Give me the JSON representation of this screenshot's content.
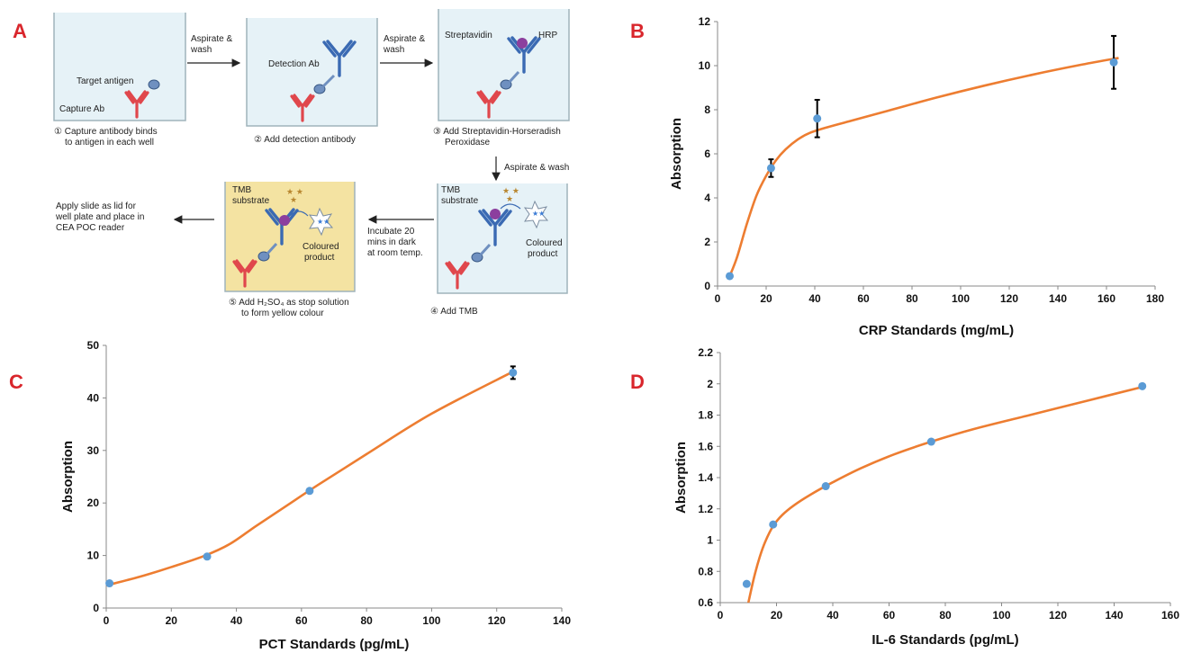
{
  "panels": {
    "A": "A",
    "B": "B",
    "C": "C",
    "D": "D"
  },
  "diagram": {
    "wells": [
      {
        "caption": [
          "① Capture antibody binds",
          "to antigen in each well"
        ],
        "labels": [
          "Target antigen",
          "Capture Ab"
        ]
      },
      {
        "caption": [
          "② Add detection antibody"
        ],
        "labels": [
          "Detection Ab"
        ]
      },
      {
        "caption": [
          "③ Add Streptavidin-Horseradish",
          "Peroxidase"
        ],
        "labels": [
          "Streptavidin",
          "HRP"
        ]
      },
      {
        "caption": [
          "④ Add TMB"
        ],
        "labels": [
          "TMB",
          "substrate",
          "Coloured",
          "product"
        ]
      },
      {
        "caption": [
          "⑤ Add H₂SO₄ as stop solution",
          "to form yellow colour"
        ],
        "labels": [
          "TMB",
          "substrate",
          "Coloured",
          "product"
        ]
      }
    ],
    "steps": {
      "wash1": [
        "Aspirate &",
        "wash"
      ],
      "wash2": [
        "Aspirate &",
        "wash"
      ],
      "wash3": [
        "Aspirate & wash"
      ],
      "incubate": [
        "Incubate 20",
        "mins in dark",
        "at room temp."
      ],
      "final": [
        "Apply slide as lid for",
        "well plate and place in",
        "CEA POC reader"
      ]
    },
    "colors": {
      "capture_ab": "#e0474c",
      "detection_ab": "#3a6ab3",
      "antigen": "#6f90c0",
      "hrp": "#8c3f9e",
      "well": "#e6f2f7",
      "yellow_well": "#f4e3a2",
      "tmb_star": "#b8862f"
    }
  },
  "chart_data": [
    {
      "type": "scatter",
      "panel": "B",
      "xlabel": "CRP Standards (mg/mL)",
      "ylabel": "Absorption",
      "xlim": [
        0,
        180
      ],
      "ylim": [
        0,
        12
      ],
      "xticks": [
        0,
        20,
        40,
        60,
        80,
        100,
        120,
        140,
        160,
        180
      ],
      "yticks": [
        0,
        2,
        4,
        6,
        8,
        10,
        12
      ],
      "x": [
        5,
        22,
        41,
        163
      ],
      "y": [
        0.45,
        5.35,
        7.6,
        10.15
      ],
      "error": [
        0,
        0.4,
        0.85,
        1.2
      ],
      "fit": {
        "x": [
          5,
          8,
          12,
          16,
          20,
          24,
          28,
          33,
          38,
          45,
          55,
          70,
          90,
          110,
          130,
          150,
          165
        ],
        "y": [
          0.45,
          1.3,
          2.8,
          4.1,
          5.0,
          5.7,
          6.2,
          6.65,
          6.95,
          7.2,
          7.5,
          7.95,
          8.55,
          9.1,
          9.6,
          10.05,
          10.35
        ]
      },
      "grid": false,
      "marker_color": "#5b9bd5",
      "line_color": "#ed7d31"
    },
    {
      "type": "scatter",
      "panel": "C",
      "xlabel": "PCT Standards (pg/mL)",
      "ylabel": "Absorption",
      "xlim": [
        0,
        140
      ],
      "ylim": [
        0,
        50
      ],
      "xticks": [
        0,
        20,
        40,
        60,
        80,
        100,
        120,
        140
      ],
      "yticks": [
        0,
        10,
        20,
        30,
        40,
        50
      ],
      "x": [
        1,
        31,
        62.5,
        125
      ],
      "y": [
        4.7,
        9.8,
        22.3,
        44.8
      ],
      "error": [
        0,
        0,
        0,
        1.2
      ],
      "fit": {
        "x": [
          0,
          10,
          20,
          30,
          38,
          46,
          55,
          65,
          80,
          100,
          125
        ],
        "y": [
          4.3,
          5.9,
          7.8,
          9.9,
          12.2,
          15.6,
          19.3,
          23.4,
          29.3,
          37.0,
          45.0
        ]
      },
      "grid": false,
      "marker_color": "#5b9bd5",
      "line_color": "#ed7d31"
    },
    {
      "type": "scatter",
      "panel": "D",
      "xlabel": "IL-6 Standards (pg/mL)",
      "ylabel": "Absorption",
      "xlim": [
        0,
        160
      ],
      "ylim": [
        0.6,
        2.2
      ],
      "xticks": [
        0,
        20,
        40,
        60,
        80,
        100,
        120,
        140,
        160
      ],
      "yticks": [
        0.6,
        0.8,
        1,
        1.2,
        1.4,
        1.6,
        1.8,
        2,
        2.2
      ],
      "x": [
        9.4,
        18.8,
        37.5,
        75,
        150
      ],
      "y": [
        0.72,
        1.1,
        1.345,
        1.63,
        1.985
      ],
      "error": [
        0,
        0,
        0,
        0,
        0
      ],
      "fit": {
        "x": [
          10,
          12,
          14,
          16,
          18.8,
          22,
          26,
          32,
          40,
          50,
          62,
          75,
          90,
          110,
          130,
          150
        ],
        "y": [
          0.6,
          0.76,
          0.89,
          0.99,
          1.09,
          1.16,
          1.22,
          1.29,
          1.37,
          1.46,
          1.55,
          1.63,
          1.71,
          1.8,
          1.89,
          1.98
        ]
      },
      "grid": false,
      "marker_color": "#5b9bd5",
      "line_color": "#ed7d31"
    }
  ]
}
